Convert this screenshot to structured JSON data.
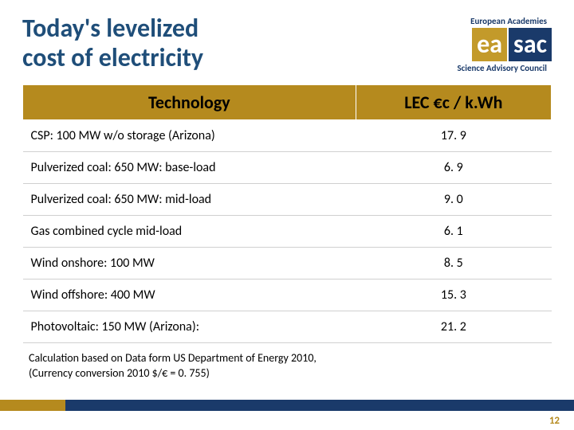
{
  "title_line1": "Today's levelized",
  "title_line2": "cost of electricity",
  "logo": {
    "top": "European Academies",
    "ea": "ea",
    "sac": "sac",
    "bottom": "Science Advisory Council"
  },
  "table": {
    "headers": {
      "tech": "Technology",
      "lec": "LEC €c / k.Wh"
    },
    "rows": [
      {
        "tech": "CSP: 100 MW w/o storage  (Arizona)",
        "lec": "17. 9"
      },
      {
        "tech": "Pulverized coal: 650 MW: base-load",
        "lec": "6. 9"
      },
      {
        "tech": "Pulverized coal: 650 MW: mid-load",
        "lec": "9. 0"
      },
      {
        "tech": "Gas combined cycle mid-load",
        "lec": "6. 1"
      },
      {
        "tech": "Wind onshore: 100 MW",
        "lec": "8. 5"
      },
      {
        "tech": "Wind offshore: 400 MW",
        "lec": "15. 3"
      },
      {
        "tech": "Photovoltaic: 150 MW (Arizona):",
        "lec": "21. 2"
      }
    ]
  },
  "footnote_line1": "Calculation based on Data form US Department of Energy 2010,",
  "footnote_line2": "(Currency conversion 2010 $/€ = 0. 755)",
  "page_number": "12",
  "colors": {
    "title": "#1f4e79",
    "header_bg": "#b58a1e",
    "navy": "#1a3a6a",
    "gold": "#b58a1e"
  }
}
